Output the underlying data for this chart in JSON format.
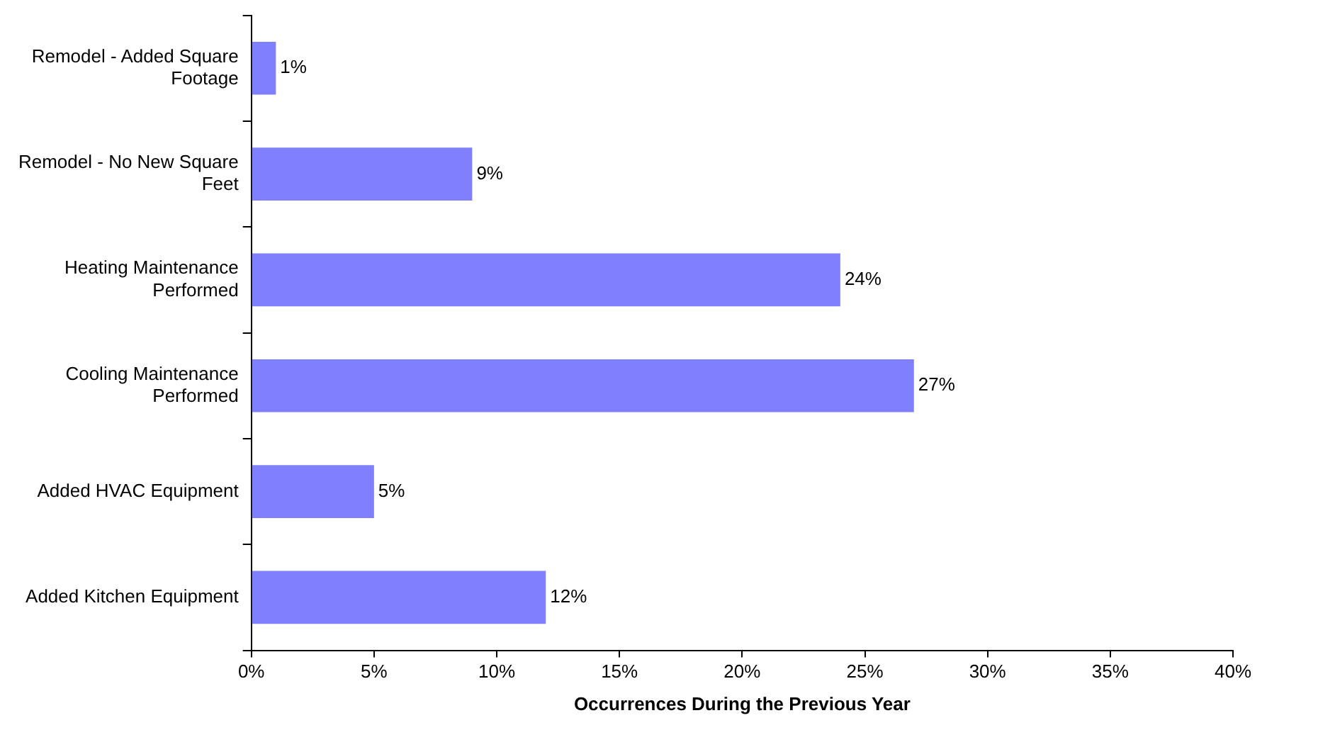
{
  "chart_data": {
    "type": "bar",
    "orientation": "horizontal",
    "xlabel": "Occurrences During the Previous Year",
    "categories": [
      "Remodel - Added Square Footage",
      "Remodel - No New Square Feet",
      "Heating Maintenance Performed",
      "Cooling Maintenance Performed",
      "Added HVAC Equipment",
      "Added Kitchen Equipment"
    ],
    "values": [
      1,
      9,
      24,
      27,
      5,
      12
    ],
    "color": "#8080ff",
    "value_labels": [
      "1%",
      "9%",
      "24%",
      "27%",
      "5%",
      "12%"
    ],
    "xlim": [
      0,
      40
    ],
    "xticks": [
      {
        "value": 0,
        "label": "0%"
      },
      {
        "value": 5,
        "label": "5%"
      },
      {
        "value": 10,
        "label": "10%"
      },
      {
        "value": 15,
        "label": "15%"
      },
      {
        "value": 20,
        "label": "20%"
      },
      {
        "value": 25,
        "label": "25%"
      },
      {
        "value": 30,
        "label": "30%"
      },
      {
        "value": 35,
        "label": "35%"
      },
      {
        "value": 40,
        "label": "40%"
      }
    ],
    "grid": false,
    "legend": false
  }
}
